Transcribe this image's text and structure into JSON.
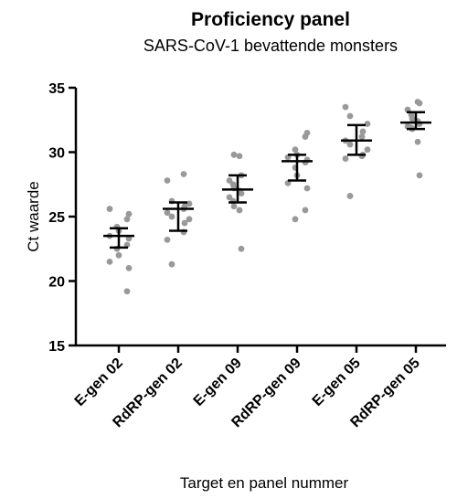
{
  "chart_data": {
    "type": "scatter",
    "title": "Proficiency panel",
    "subtitle": "SARS-CoV-1 bevattende monsters",
    "xlabel": "Target en panel nummer",
    "ylabel": "Ct waarde",
    "ylim": [
      15,
      35
    ],
    "yticks": [
      "15",
      "20",
      "25",
      "30",
      "35"
    ],
    "categories": [
      "E-gen 02",
      "RdRP-gen 02",
      "E-gen 09",
      "RdRP-gen 09",
      "E-gen 05",
      "RdRP-gen 05"
    ],
    "point_color": "#999999",
    "line_color": "#000000",
    "groups": [
      {
        "category": "E-gen 02",
        "values": [
          25.6,
          25.2,
          24.8,
          24.2,
          23.9,
          23.5,
          23.3,
          22.8,
          22.5,
          22.0,
          21.5,
          21.0,
          19.2
        ],
        "mean": 23.5,
        "err_low": 22.6,
        "err_high": 24.1
      },
      {
        "category": "RdRP-gen 02",
        "values": [
          28.3,
          27.8,
          26.2,
          26.0,
          25.8,
          25.6,
          25.3,
          25.0,
          24.8,
          24.5,
          23.8,
          23.2,
          21.3
        ],
        "mean": 25.6,
        "err_low": 23.9,
        "err_high": 26.1
      },
      {
        "category": "E-gen 09",
        "values": [
          29.8,
          29.7,
          28.2,
          27.8,
          27.5,
          27.2,
          27.0,
          26.8,
          26.5,
          26.2,
          25.8,
          25.5,
          22.5
        ],
        "mean": 27.1,
        "err_low": 26.1,
        "err_high": 28.2
      },
      {
        "category": "RdRP-gen 09",
        "values": [
          31.5,
          31.2,
          30.2,
          29.8,
          29.6,
          29.4,
          29.2,
          28.8,
          28.2,
          27.6,
          27.2,
          25.5,
          24.8
        ],
        "mean": 29.3,
        "err_low": 27.8,
        "err_high": 29.8
      },
      {
        "category": "E-gen 05",
        "values": [
          33.5,
          32.8,
          32.2,
          31.6,
          31.2,
          30.9,
          30.6,
          30.2,
          29.8,
          29.7,
          29.5,
          26.6
        ],
        "mean": 30.9,
        "err_low": 29.8,
        "err_high": 32.1
      },
      {
        "category": "RdRP-gen 05",
        "values": [
          33.9,
          33.8,
          33.3,
          32.9,
          32.6,
          32.4,
          32.2,
          32.0,
          31.9,
          31.8,
          30.8,
          28.2
        ],
        "mean": 32.3,
        "err_low": 31.8,
        "err_high": 33.1
      }
    ]
  }
}
